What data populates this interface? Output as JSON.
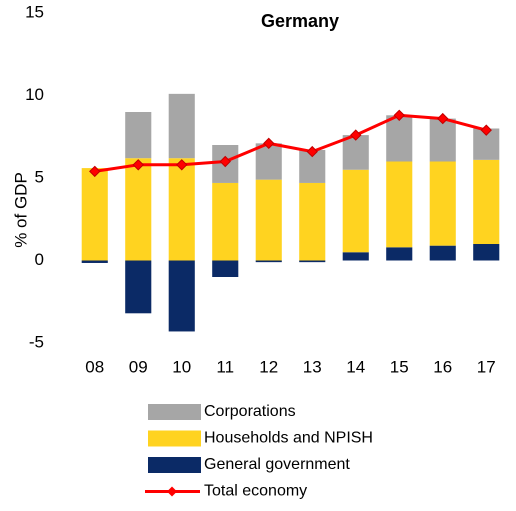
{
  "chart_data": {
    "type": "bar",
    "stacked": true,
    "title": "Germany",
    "y_label": "% of GDP",
    "categories": [
      "08",
      "09",
      "10",
      "11",
      "12",
      "13",
      "14",
      "15",
      "16",
      "17"
    ],
    "series": [
      {
        "name": "Corporations",
        "color": "#a6a6a6",
        "values": [
          0,
          2.8,
          3.9,
          2.3,
          2.2,
          2.0,
          2.1,
          2.8,
          2.6,
          1.9
        ]
      },
      {
        "name": "Households and NPISH",
        "color": "#ffd320",
        "values": [
          5.6,
          6.2,
          6.2,
          4.7,
          4.9,
          4.7,
          5.0,
          5.2,
          5.1,
          5.1
        ]
      },
      {
        "name": "General government",
        "color": "#0b2a66",
        "values": [
          -0.15,
          -3.2,
          -4.3,
          -1.0,
          -0.1,
          -0.1,
          0.5,
          0.8,
          0.9,
          1.0
        ]
      },
      {
        "name": "Total economy",
        "type": "line",
        "color": "#ff0000",
        "values": [
          5.4,
          5.8,
          5.8,
          6.0,
          7.1,
          6.6,
          7.6,
          8.8,
          8.6,
          7.9
        ]
      }
    ],
    "ylim": [
      -5,
      15
    ],
    "yticks": [
      -5,
      0,
      5,
      10,
      15
    ],
    "grid": false
  }
}
